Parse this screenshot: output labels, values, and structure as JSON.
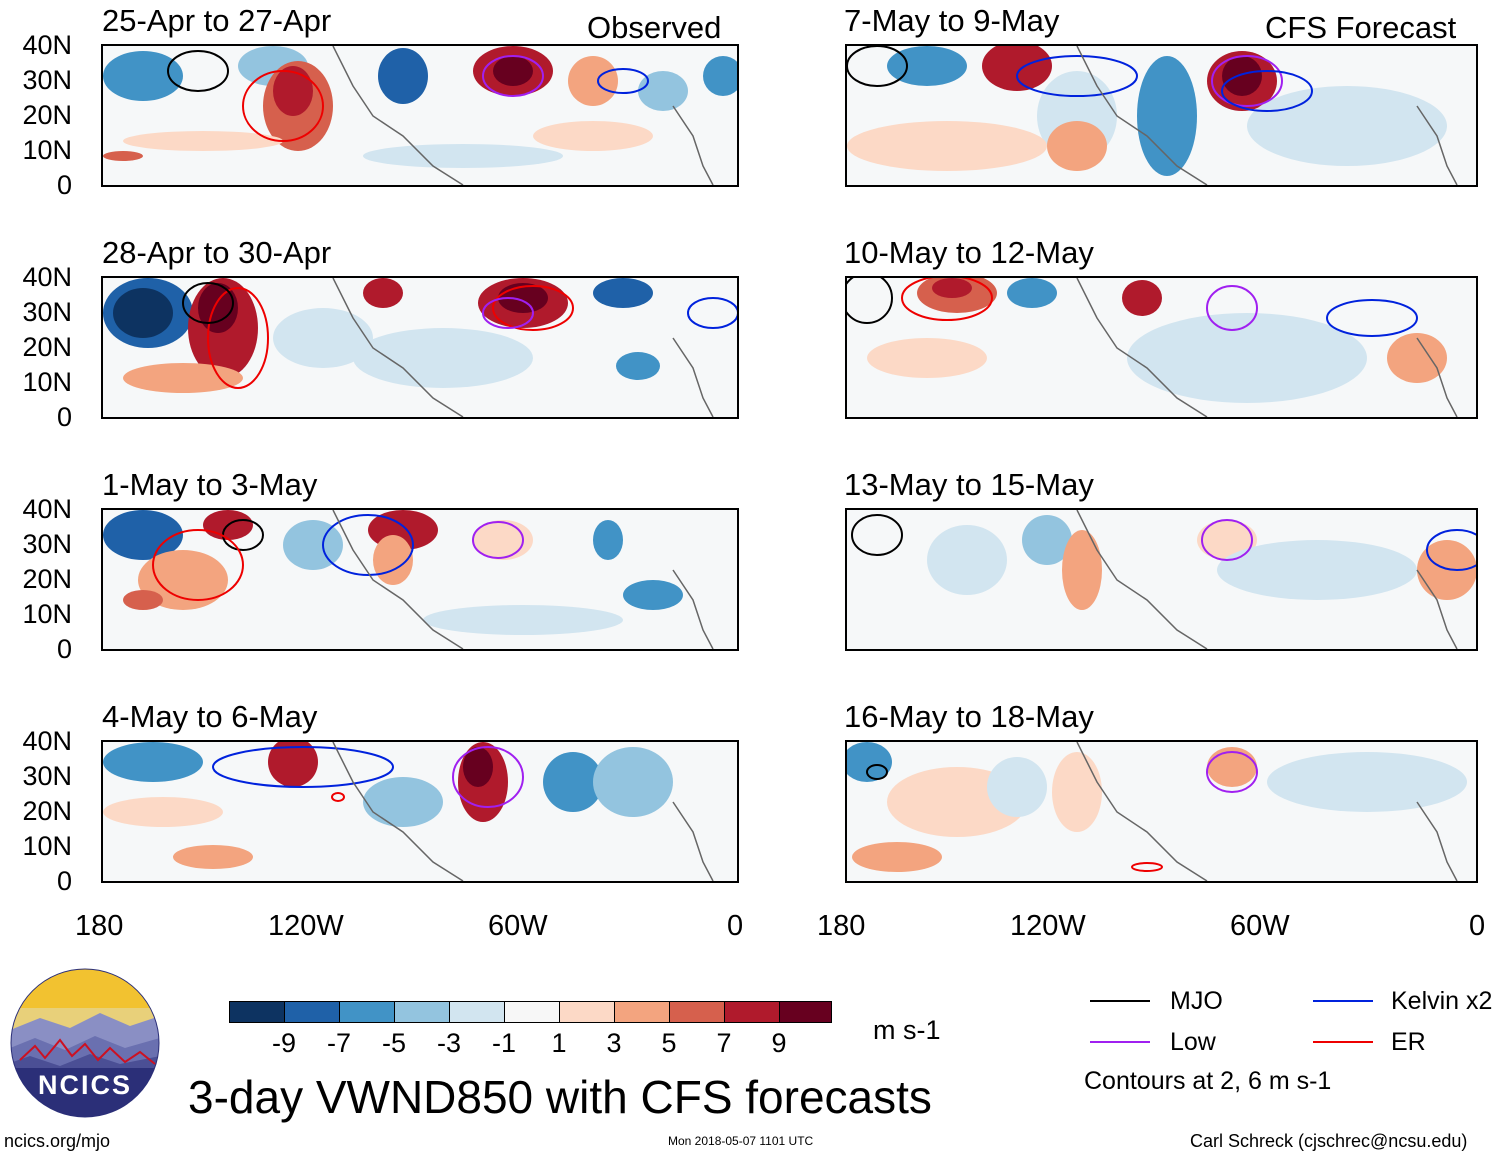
{
  "header": {
    "observed_label": "Observed",
    "forecast_label": "CFS Forecast"
  },
  "panels": {
    "left": [
      {
        "title": "25-Apr to 27-Apr"
      },
      {
        "title": "28-Apr to 30-Apr"
      },
      {
        "title": "1-May to 3-May"
      },
      {
        "title": "4-May to 6-May"
      }
    ],
    "right": [
      {
        "title": "7-May to 9-May"
      },
      {
        "title": "10-May to 12-May"
      },
      {
        "title": "13-May to 15-May"
      },
      {
        "title": "16-May to 18-May"
      }
    ]
  },
  "axes": {
    "lat_labels": [
      "40N",
      "30N",
      "20N",
      "10N",
      "0"
    ],
    "lon_labels": [
      "180",
      "120W",
      "60W",
      "0"
    ]
  },
  "colorbar": {
    "ticks": [
      "-9",
      "-7",
      "-5",
      "-3",
      "-1",
      "1",
      "3",
      "5",
      "7",
      "9"
    ],
    "units": "m s-1",
    "colors": [
      "#0d3361",
      "#1f61a8",
      "#4193c6",
      "#93c4df",
      "#d2e5f0",
      "#f7f7f7",
      "#fcd9c6",
      "#f3a47f",
      "#d6604d",
      "#b01a2c",
      "#67001f"
    ]
  },
  "legend": {
    "items": [
      {
        "label": "MJO",
        "color": "#000000"
      },
      {
        "label": "Kelvin x2",
        "color": "#0022dd"
      },
      {
        "label": "Low",
        "color": "#a020f0"
      },
      {
        "label": "ER",
        "color": "#ee0000"
      }
    ],
    "note": "Contours at 2, 6 m s-1"
  },
  "title": "3-day VWND850 with CFS forecasts",
  "logo": {
    "text": "NCICS"
  },
  "footer": {
    "url": "ncics.org/mjo",
    "timestamp": "Mon 2018-05-07 1101 UTC",
    "author": "Carl Schreck (cjschrec@ncsu.edu)"
  }
}
